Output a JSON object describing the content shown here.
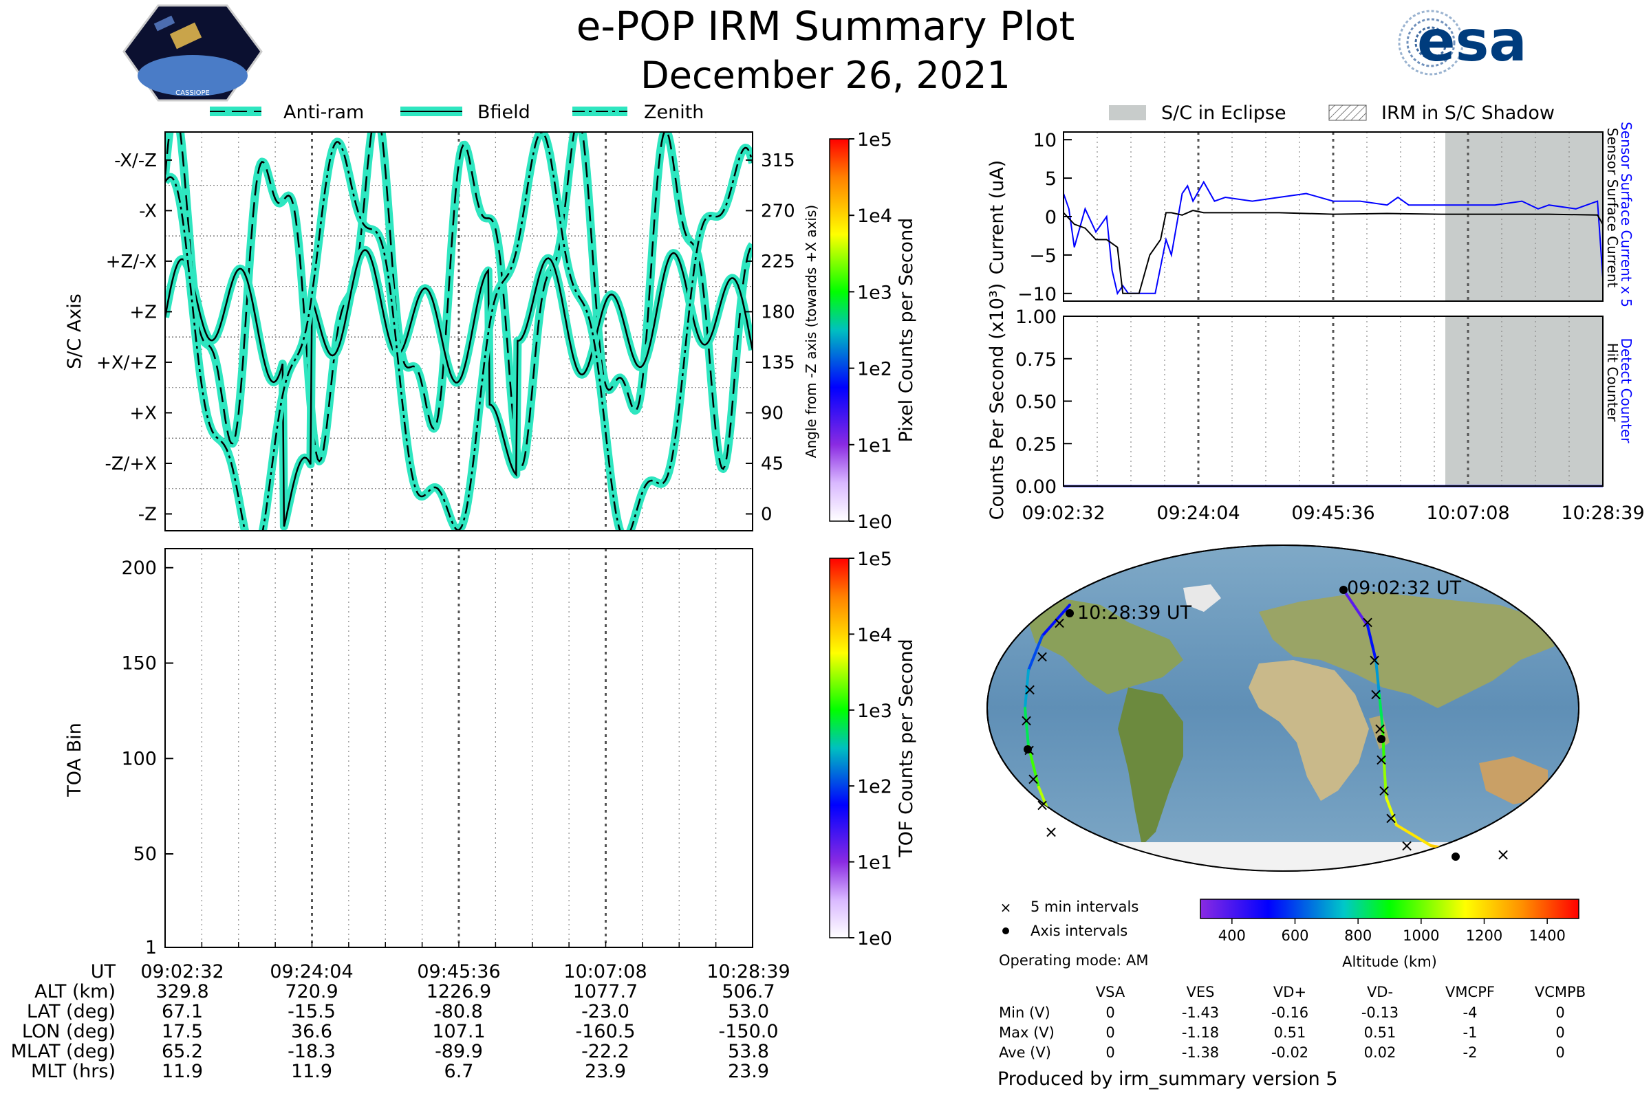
{
  "header": {
    "title": "e-POP IRM Summary Plot",
    "date": "December 26, 2021",
    "logo_left_text": "CASSIOPE",
    "logo_right_text": "esa"
  },
  "legend_top_left": [
    {
      "label": "Anti-ram",
      "style": "dash"
    },
    {
      "label": "Bfield",
      "style": "solid"
    },
    {
      "label": "Zenith",
      "style": "dashdot"
    }
  ],
  "legend_top_right": [
    {
      "label": "S/C in Eclipse",
      "style": "grey-fill"
    },
    {
      "label": "IRM in S/C Shadow",
      "style": "hatch"
    }
  ],
  "colors": {
    "curve_fill": "#2ee6c0",
    "curve_line": "#000000",
    "sensor_blue": "#0000ff",
    "eclipse_grey": "#c8cccb"
  },
  "time_ticks": [
    "09:02:32",
    "09:24:04",
    "09:45:36",
    "10:07:08",
    "10:28:39"
  ],
  "chart_data": [
    {
      "type": "line",
      "panel": "attitude",
      "ylabel": "S/C Axis",
      "ylabel_right": "Angle from -Z axis (towards +X axis)",
      "y_ticks_left": [
        "-X/-Z",
        "-X",
        "+Z/-X",
        "+Z",
        "+X/+Z",
        "+X",
        "-Z/+X",
        "-Z"
      ],
      "y_ticks_right": [
        "315",
        "270",
        "225",
        "180",
        "135",
        "90",
        "45",
        "0"
      ],
      "ylim": [
        -15,
        340
      ],
      "series_names": [
        "Anti-ram",
        "Bfield",
        "Zenith"
      ],
      "colorbar": {
        "label": "Pixel Counts per Second",
        "ticks": [
          "1e0",
          "1e1",
          "1e2",
          "1e3",
          "1e4",
          "1e5"
        ]
      }
    },
    {
      "type": "heatmap",
      "panel": "toa",
      "ylabel": "TOA Bin",
      "y_ticks": [
        "1",
        "50",
        "100",
        "150",
        "200"
      ],
      "ylim": [
        1,
        210
      ],
      "colorbar": {
        "label": "TOF Counts per Second",
        "ticks": [
          "1e0",
          "1e1",
          "1e2",
          "1e3",
          "1e4",
          "1e5"
        ]
      }
    },
    {
      "type": "line",
      "panel": "current",
      "ylabel": "Current (uA)",
      "y_ticks": [
        "10",
        "5",
        "0",
        "−5",
        "−10"
      ],
      "ylim": [
        -11,
        11
      ],
      "right_labels": [
        "Sensor Surface Current x 5",
        "Sensor Surface Current"
      ],
      "series": [
        {
          "name": "Sensor Surface Current x 5",
          "x": [
            0,
            1,
            2,
            4,
            6,
            8,
            9,
            10,
            11,
            12,
            13,
            15,
            17,
            19,
            20,
            22,
            23,
            24,
            26,
            28,
            30,
            35,
            40,
            45,
            50,
            55,
            60,
            62,
            64,
            70,
            75,
            80,
            85,
            88,
            90,
            95,
            99,
            100
          ],
          "y": [
            3,
            1,
            -4,
            1,
            -2,
            0,
            -7,
            -10,
            -9,
            -10,
            -10,
            -10,
            -10,
            -3,
            -5,
            3,
            4,
            2,
            4.5,
            2,
            2.5,
            2,
            2.5,
            3,
            2,
            2,
            1.5,
            2.5,
            1.5,
            1.5,
            1.5,
            1.5,
            2,
            1,
            1.5,
            1,
            2,
            -8
          ]
        },
        {
          "name": "Sensor Surface Current",
          "x": [
            0,
            2,
            4,
            6,
            8,
            10,
            11,
            12,
            13,
            14,
            16,
            18,
            19,
            20,
            22,
            24,
            26,
            28,
            30,
            40,
            50,
            60,
            70,
            80,
            90,
            99,
            100
          ],
          "y": [
            0.5,
            -1,
            -1.5,
            -3,
            -3,
            -4,
            -10,
            -10,
            -10,
            -10,
            -5,
            -3,
            0.5,
            0.5,
            0.2,
            0.8,
            0.5,
            0.5,
            0.5,
            0.5,
            0.3,
            0.4,
            0.3,
            0.3,
            0.3,
            0.2,
            -1
          ]
        }
      ]
    },
    {
      "type": "line",
      "panel": "counts",
      "ylabel": "Counts Per Second (x10³)",
      "y_ticks": [
        "1.00",
        "0.75",
        "0.50",
        "0.25",
        "0.00"
      ],
      "ylim": [
        0,
        1
      ],
      "right_labels": [
        "Detect Counter",
        "Hit Counter"
      ],
      "series": [
        {
          "name": "Detect Counter",
          "x": [
            0,
            100
          ],
          "y": [
            0,
            0
          ]
        }
      ]
    },
    {
      "type": "scatter",
      "panel": "map",
      "labels": [
        "09:02:32 UT",
        "10:28:39 UT"
      ],
      "legend": [
        "5 min intervals",
        "Axis intervals"
      ],
      "colorbar": {
        "label": "Altitude (km)",
        "ticks": [
          "400",
          "600",
          "800",
          "1000",
          "1200",
          "1400"
        ],
        "range": [
          300,
          1500
        ]
      }
    }
  ],
  "info_table": {
    "row_headers": [
      "UT",
      "ALT (km)",
      "LAT (deg)",
      "LON (deg)",
      "MLAT (deg)",
      "MLT (hrs)"
    ],
    "columns": [
      [
        "09:02:32",
        "329.8",
        "67.1",
        "17.5",
        "65.2",
        "11.9"
      ],
      [
        "09:24:04",
        "720.9",
        "-15.5",
        "36.6",
        "-18.3",
        "11.9"
      ],
      [
        "09:45:36",
        "1226.9",
        "-80.8",
        "107.1",
        "-89.9",
        "6.7"
      ],
      [
        "10:07:08",
        "1077.7",
        "-23.0",
        "-160.5",
        "-22.2",
        "23.9"
      ],
      [
        "10:28:39",
        "506.7",
        "53.0",
        "-150.0",
        "53.8",
        "23.9"
      ]
    ]
  },
  "operating_mode": "Operating mode: AM",
  "voltage_table": {
    "headers": [
      "VSA",
      "VES",
      "VD+",
      "VD-",
      "VMCPF",
      "VCMPB"
    ],
    "rows": [
      {
        "label": "Min (V)",
        "values": [
          "0",
          "-1.43",
          "-0.16",
          "-0.13",
          "-4",
          "0"
        ]
      },
      {
        "label": "Max (V)",
        "values": [
          "0",
          "-1.18",
          "0.51",
          "0.51",
          "-1",
          "0"
        ]
      },
      {
        "label": "Ave (V)",
        "values": [
          "0",
          "-1.38",
          "-0.02",
          "0.02",
          "-2",
          "0"
        ]
      }
    ]
  },
  "footer": "Produced by irm_summary version 5"
}
